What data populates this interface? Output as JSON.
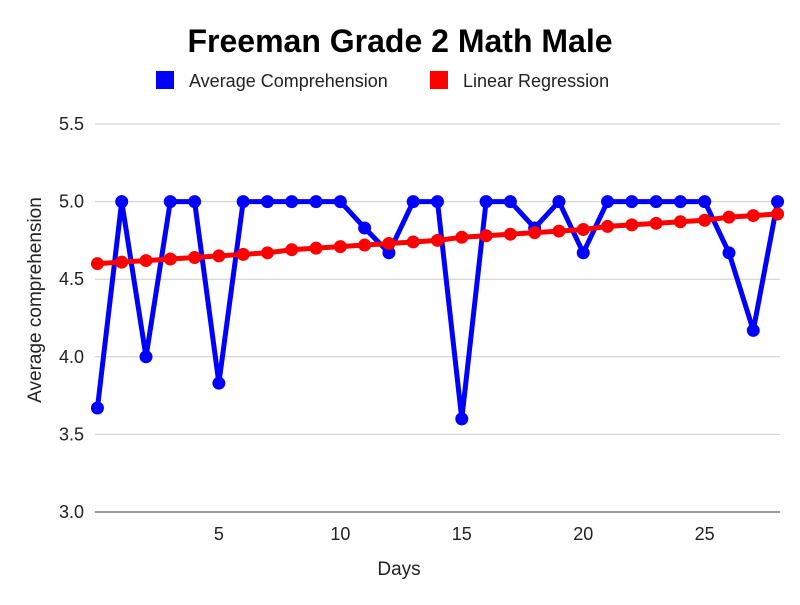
{
  "chart_data": {
    "type": "line",
    "title": "Freeman Grade 2 Math Male",
    "xlabel": "Days",
    "ylabel": "Average comprehension",
    "xlim": [
      -0.1,
      28.1
    ],
    "ylim": [
      3.0,
      5.5
    ],
    "xticks": [
      5,
      10,
      15,
      20,
      25
    ],
    "xtick_labels": [
      "5",
      "10",
      "15",
      "20",
      "25"
    ],
    "yticks": [
      3.0,
      3.5,
      4.0,
      4.5,
      5.0,
      5.5
    ],
    "ytick_labels": [
      "3.0",
      "3.5",
      "4.0",
      "4.5",
      "5.0",
      "5.5"
    ],
    "grid": true,
    "legend_position": "top",
    "x": [
      0,
      1,
      2,
      3,
      4,
      5,
      6,
      7,
      8,
      9,
      10,
      11,
      12,
      13,
      14,
      15,
      16,
      17,
      18,
      19,
      20,
      21,
      22,
      23,
      24,
      25,
      26,
      27,
      28
    ],
    "series": [
      {
        "name": "Average Comprehension",
        "color": "#0000ff",
        "values": [
          3.67,
          5.0,
          4.0,
          5.0,
          5.0,
          3.83,
          5.0,
          5.0,
          5.0,
          5.0,
          5.0,
          4.83,
          4.67,
          5.0,
          5.0,
          3.6,
          5.0,
          5.0,
          4.83,
          5.0,
          4.67,
          5.0,
          5.0,
          5.0,
          5.0,
          5.0,
          4.67,
          4.17,
          5.0
        ]
      },
      {
        "name": "Linear Regression",
        "color": "#ff0000",
        "values": [
          4.6,
          4.61,
          4.62,
          4.63,
          4.64,
          4.65,
          4.66,
          4.67,
          4.69,
          4.7,
          4.71,
          4.72,
          4.73,
          4.74,
          4.75,
          4.77,
          4.78,
          4.79,
          4.8,
          4.81,
          4.82,
          4.84,
          4.85,
          4.86,
          4.87,
          4.88,
          4.9,
          4.91,
          4.92
        ]
      }
    ]
  }
}
